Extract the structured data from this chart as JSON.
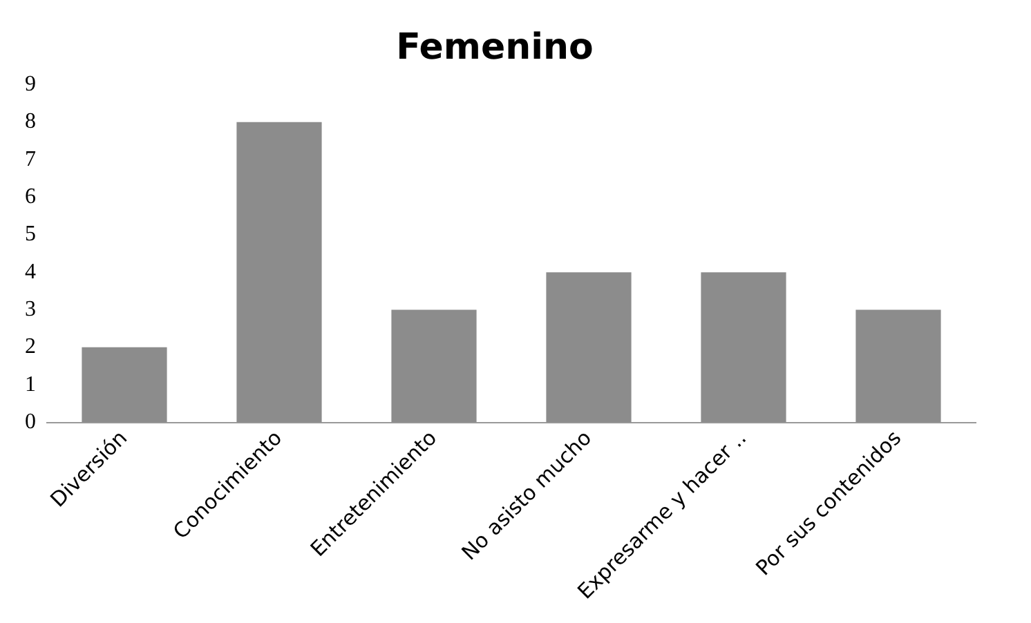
{
  "chart_data": {
    "type": "bar",
    "title": "Femenino",
    "categories": [
      "Diversión",
      "Conocimiento",
      "Entretenimiento",
      "No asisto mucho",
      "Expresarme y hacer ..",
      "Por sus contenidos"
    ],
    "values": [
      2,
      8,
      3,
      4,
      4,
      3
    ],
    "color": "#8c8c8c",
    "ylim": [
      0,
      9
    ],
    "yticks": [
      0,
      1,
      2,
      3,
      4,
      5,
      6,
      7,
      8,
      9
    ],
    "grid": false,
    "legend": false
  }
}
